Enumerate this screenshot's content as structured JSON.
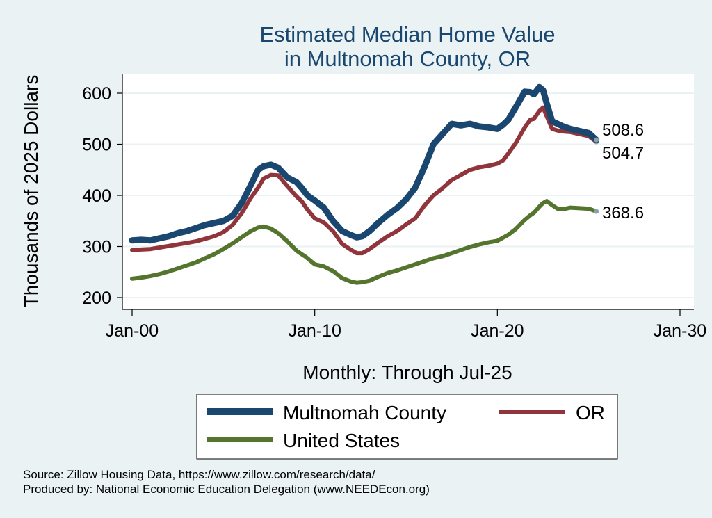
{
  "chart_data": {
    "type": "line",
    "title": [
      "Estimated Median Home Value",
      "in Multnomah County, OR"
    ],
    "ylabel": "Thousands of 2025 Dollars",
    "xlabel": "Monthly: Through Jul-25",
    "x_ticks": [
      {
        "label": "Jan-00",
        "year": 2000
      },
      {
        "label": "Jan-10",
        "year": 2010
      },
      {
        "label": "Jan-20",
        "year": 2020
      },
      {
        "label": "Jan-30",
        "year": 2030
      }
    ],
    "y_ticks": [
      200,
      300,
      400,
      500,
      600
    ],
    "xlim": [
      1999.5,
      2030
    ],
    "ylim": [
      180,
      640
    ],
    "grid": true,
    "series": [
      {
        "name": "United States",
        "color": "#55752f",
        "end_label": "368.6",
        "points": [
          [
            2000.0,
            237
          ],
          [
            2000.5,
            239
          ],
          [
            2001.0,
            242
          ],
          [
            2001.5,
            246
          ],
          [
            2002.0,
            251
          ],
          [
            2002.5,
            257
          ],
          [
            2003.0,
            263
          ],
          [
            2003.5,
            269
          ],
          [
            2004.0,
            277
          ],
          [
            2004.5,
            285
          ],
          [
            2005.0,
            295
          ],
          [
            2005.5,
            306
          ],
          [
            2006.0,
            318
          ],
          [
            2006.5,
            330
          ],
          [
            2006.9,
            337
          ],
          [
            2007.2,
            339
          ],
          [
            2007.6,
            335
          ],
          [
            2008.0,
            326
          ],
          [
            2008.5,
            310
          ],
          [
            2009.0,
            292
          ],
          [
            2009.2,
            287
          ],
          [
            2009.5,
            280
          ],
          [
            2010.0,
            265
          ],
          [
            2010.5,
            261
          ],
          [
            2011.0,
            252
          ],
          [
            2011.5,
            238
          ],
          [
            2012.0,
            231
          ],
          [
            2012.3,
            229
          ],
          [
            2012.6,
            230
          ],
          [
            2013.0,
            233
          ],
          [
            2013.5,
            241
          ],
          [
            2014.0,
            248
          ],
          [
            2014.5,
            253
          ],
          [
            2015.0,
            259
          ],
          [
            2015.5,
            265
          ],
          [
            2016.0,
            271
          ],
          [
            2016.5,
            277
          ],
          [
            2017.0,
            281
          ],
          [
            2017.5,
            287
          ],
          [
            2018.0,
            293
          ],
          [
            2018.5,
            299
          ],
          [
            2019.0,
            304
          ],
          [
            2019.5,
            308
          ],
          [
            2020.0,
            311
          ],
          [
            2020.3,
            317
          ],
          [
            2020.6,
            323
          ],
          [
            2021.0,
            334
          ],
          [
            2021.5,
            352
          ],
          [
            2021.8,
            361
          ],
          [
            2022.0,
            366
          ],
          [
            2022.3,
            378
          ],
          [
            2022.5,
            385
          ],
          [
            2022.7,
            389
          ],
          [
            2023.0,
            381
          ],
          [
            2023.3,
            374
          ],
          [
            2023.6,
            373
          ],
          [
            2024.0,
            376
          ],
          [
            2024.5,
            375
          ],
          [
            2025.0,
            374
          ],
          [
            2025.42,
            368.6
          ]
        ]
      },
      {
        "name": "OR",
        "color": "#90353b",
        "end_label": "504.7",
        "points": [
          [
            2000.0,
            293
          ],
          [
            2000.5,
            294
          ],
          [
            2001.0,
            295
          ],
          [
            2001.5,
            298
          ],
          [
            2002.0,
            301
          ],
          [
            2002.5,
            304
          ],
          [
            2003.0,
            307
          ],
          [
            2003.5,
            310
          ],
          [
            2004.0,
            315
          ],
          [
            2004.5,
            320
          ],
          [
            2005.0,
            328
          ],
          [
            2005.5,
            342
          ],
          [
            2006.0,
            365
          ],
          [
            2006.5,
            395
          ],
          [
            2006.9,
            415
          ],
          [
            2007.2,
            433
          ],
          [
            2007.6,
            440
          ],
          [
            2008.0,
            439
          ],
          [
            2008.5,
            418
          ],
          [
            2009.0,
            398
          ],
          [
            2009.3,
            388
          ],
          [
            2009.6,
            372
          ],
          [
            2010.0,
            355
          ],
          [
            2010.5,
            347
          ],
          [
            2011.0,
            330
          ],
          [
            2011.5,
            305
          ],
          [
            2012.0,
            293
          ],
          [
            2012.3,
            287
          ],
          [
            2012.6,
            287
          ],
          [
            2013.0,
            295
          ],
          [
            2013.5,
            308
          ],
          [
            2014.0,
            320
          ],
          [
            2014.5,
            330
          ],
          [
            2015.0,
            343
          ],
          [
            2015.5,
            355
          ],
          [
            2016.0,
            380
          ],
          [
            2016.5,
            400
          ],
          [
            2017.0,
            414
          ],
          [
            2017.5,
            430
          ],
          [
            2018.0,
            440
          ],
          [
            2018.5,
            450
          ],
          [
            2019.0,
            455
          ],
          [
            2019.5,
            458
          ],
          [
            2020.0,
            462
          ],
          [
            2020.3,
            468
          ],
          [
            2020.6,
            482
          ],
          [
            2021.0,
            502
          ],
          [
            2021.5,
            533
          ],
          [
            2021.8,
            548
          ],
          [
            2022.0,
            550
          ],
          [
            2022.3,
            565
          ],
          [
            2022.5,
            572
          ],
          [
            2022.7,
            555
          ],
          [
            2023.0,
            530
          ],
          [
            2023.3,
            527
          ],
          [
            2023.6,
            525
          ],
          [
            2024.0,
            524
          ],
          [
            2024.5,
            520
          ],
          [
            2025.0,
            516
          ],
          [
            2025.42,
            504.7
          ]
        ]
      },
      {
        "name": "Multnomah County",
        "color": "#1a476f",
        "end_label": "508.6",
        "points": [
          [
            2000.0,
            312
          ],
          [
            2000.5,
            313
          ],
          [
            2001.0,
            312
          ],
          [
            2001.5,
            316
          ],
          [
            2002.0,
            320
          ],
          [
            2002.5,
            326
          ],
          [
            2003.0,
            330
          ],
          [
            2003.5,
            336
          ],
          [
            2004.0,
            342
          ],
          [
            2004.5,
            346
          ],
          [
            2005.0,
            350
          ],
          [
            2005.5,
            360
          ],
          [
            2006.0,
            385
          ],
          [
            2006.5,
            420
          ],
          [
            2006.9,
            450
          ],
          [
            2007.2,
            457
          ],
          [
            2007.6,
            460
          ],
          [
            2008.0,
            454
          ],
          [
            2008.5,
            435
          ],
          [
            2009.0,
            426
          ],
          [
            2009.3,
            414
          ],
          [
            2009.6,
            400
          ],
          [
            2010.0,
            390
          ],
          [
            2010.5,
            376
          ],
          [
            2011.0,
            350
          ],
          [
            2011.5,
            330
          ],
          [
            2012.0,
            322
          ],
          [
            2012.3,
            318
          ],
          [
            2012.6,
            320
          ],
          [
            2013.0,
            330
          ],
          [
            2013.5,
            347
          ],
          [
            2014.0,
            362
          ],
          [
            2014.5,
            375
          ],
          [
            2015.0,
            392
          ],
          [
            2015.5,
            415
          ],
          [
            2016.0,
            455
          ],
          [
            2016.5,
            500
          ],
          [
            2017.0,
            520
          ],
          [
            2017.5,
            540
          ],
          [
            2018.0,
            537
          ],
          [
            2018.5,
            540
          ],
          [
            2019.0,
            535
          ],
          [
            2019.5,
            533
          ],
          [
            2020.0,
            530
          ],
          [
            2020.3,
            538
          ],
          [
            2020.6,
            548
          ],
          [
            2021.0,
            572
          ],
          [
            2021.5,
            603
          ],
          [
            2021.8,
            602
          ],
          [
            2022.0,
            598
          ],
          [
            2022.3,
            612
          ],
          [
            2022.5,
            606
          ],
          [
            2022.7,
            580
          ],
          [
            2023.0,
            545
          ],
          [
            2023.3,
            540
          ],
          [
            2023.6,
            535
          ],
          [
            2024.0,
            530
          ],
          [
            2024.5,
            526
          ],
          [
            2025.0,
            522
          ],
          [
            2025.42,
            508.6
          ]
        ]
      }
    ],
    "legend": {
      "position": "bottom",
      "items": [
        "Multnomah County",
        "OR",
        "United States"
      ]
    }
  },
  "footnotes": {
    "source": "Source: Zillow Housing Data, https://www.zillow.com/research/data/",
    "produced_by": "Produced by: National Economic Education Delegation (www.NEEDEcon.org)"
  }
}
